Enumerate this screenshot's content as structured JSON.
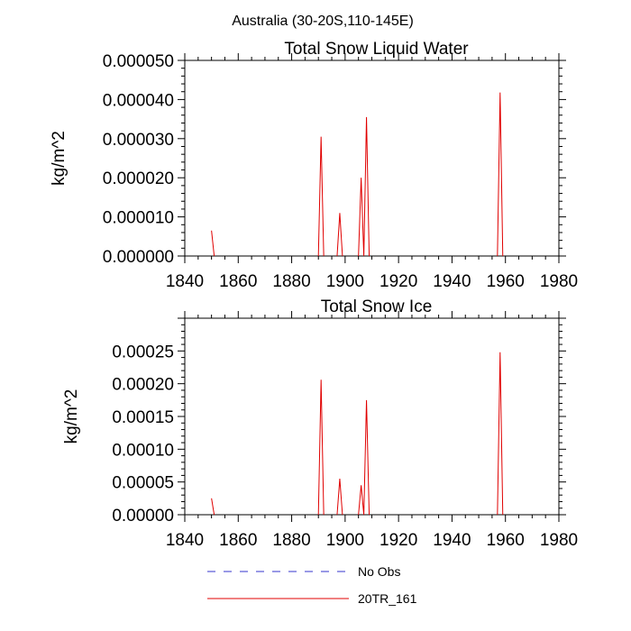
{
  "suptitle": "Australia (30-20S,110-145E)",
  "colors": {
    "obs": "#3333cc",
    "model": "#e00000",
    "axis": "#000000"
  },
  "legend": {
    "items": [
      {
        "label": "No Obs",
        "style": "dashed",
        "color": "#3333cc"
      },
      {
        "label": "20TR_161",
        "style": "solid",
        "color": "#e00000"
      }
    ]
  },
  "chart_data": [
    {
      "type": "line",
      "title": "Total Snow Liquid Water",
      "xlabel": "",
      "ylabel": "kg/m^2",
      "xlim": [
        1840,
        1980
      ],
      "ylim": [
        0,
        5e-05
      ],
      "xticks": [
        1840,
        1860,
        1880,
        1900,
        1920,
        1940,
        1960,
        1980
      ],
      "xtick_labels": [
        "1840",
        "1860",
        "1880",
        "1900",
        "1920",
        "1940",
        "1960",
        "1980"
      ],
      "yticks": [
        0,
        1e-05,
        2e-05,
        3e-05,
        4e-05,
        5e-05
      ],
      "ytick_labels": [
        "0.000000",
        "0.000010",
        "0.000020",
        "0.000030",
        "0.000040",
        "0.000050"
      ],
      "series": [
        {
          "name": "20TR_161",
          "x": [
            1850,
            1851,
            1890,
            1891,
            1892,
            1897,
            1898,
            1899,
            1905,
            1906,
            1907,
            1908,
            1909,
            1957,
            1958,
            1959
          ],
          "values": [
            6.5e-06,
            0,
            0,
            3.05e-05,
            0,
            0,
            1.1e-05,
            0,
            0,
            2e-05,
            0,
            3.55e-05,
            0,
            0,
            4.18e-05,
            0
          ]
        }
      ]
    },
    {
      "type": "line",
      "title": "Total Snow Ice",
      "xlabel": "",
      "ylabel": "kg/m^2",
      "xlim": [
        1840,
        1980
      ],
      "ylim": [
        0,
        0.0003
      ],
      "xticks": [
        1840,
        1860,
        1880,
        1900,
        1920,
        1940,
        1960,
        1980
      ],
      "xtick_labels": [
        "1840",
        "1860",
        "1880",
        "1900",
        "1920",
        "1940",
        "1960",
        "1980"
      ],
      "yticks": [
        0,
        5e-05,
        0.0001,
        0.00015,
        0.0002,
        0.00025
      ],
      "ytick_labels": [
        "0.00000",
        "0.00005",
        "0.00010",
        "0.00015",
        "0.00020",
        "0.00025"
      ],
      "series": [
        {
          "name": "20TR_161",
          "x": [
            1850,
            1851,
            1890,
            1891,
            1892,
            1897,
            1898,
            1899,
            1905,
            1906,
            1907,
            1908,
            1909,
            1957,
            1958,
            1959
          ],
          "values": [
            2.5e-05,
            0,
            0,
            0.000206,
            0,
            0,
            5.5e-05,
            0,
            0,
            4.5e-05,
            0,
            0.000175,
            0,
            0,
            0.000248,
            0
          ]
        }
      ]
    }
  ]
}
